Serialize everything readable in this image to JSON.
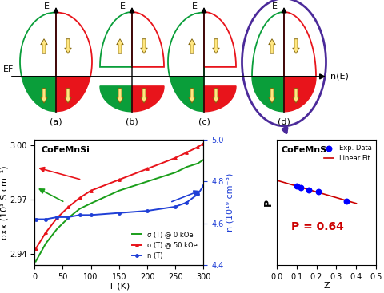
{
  "diagram": {
    "energy_label": "E",
    "dos_label": "n(E)",
    "fermi_label": "EF",
    "panels": [
      {
        "label": "(a)"
      },
      {
        "label": "(b)"
      },
      {
        "label": "(c)"
      },
      {
        "label": "(d)"
      }
    ]
  },
  "chart_data": [
    {
      "type": "line",
      "annotation": "CoFeMnSi",
      "x_label": "T (K)",
      "y_label": "σxx (10³ S cm⁻¹)",
      "y2_label": "n (10¹⁹ cm⁻³)",
      "xlim": [
        0,
        300
      ],
      "xticks": [
        0,
        50,
        100,
        150,
        200,
        250,
        300
      ],
      "ylim": [
        2.934,
        3.003
      ],
      "yticks": [
        2.94,
        2.97,
        {
          "value": 3.0,
          "label": "3.00"
        }
      ],
      "y2lim": [
        4.4,
        5.0
      ],
      "y2ticks": [
        4.4,
        4.6,
        4.8,
        5.0
      ],
      "legend": "lower right",
      "x": [
        2,
        20,
        40,
        60,
        80,
        100,
        150,
        200,
        250,
        270,
        290,
        300
      ],
      "series": [
        {
          "name": "σ (T) @ 0 kOe",
          "color": "#1a9e1a",
          "values": [
            2.936,
            2.946,
            2.954,
            2.96,
            2.965,
            2.968,
            2.975,
            2.98,
            2.985,
            2.988,
            2.99,
            2.992
          ]
        },
        {
          "name": "σ (T) @ 50 kOe",
          "color": "#e8141b",
          "marker": "triangle",
          "values": [
            2.943,
            2.952,
            2.96,
            2.966,
            2.971,
            2.975,
            2.981,
            2.987,
            2.993,
            2.996,
            2.999,
            3.001
          ]
        },
        {
          "name": "n (T)",
          "color": "#1f3fd6",
          "marker": "circle",
          "axis": "y2",
          "values": [
            4.62,
            4.62,
            4.63,
            4.63,
            4.64,
            4.64,
            4.65,
            4.66,
            4.68,
            4.7,
            4.74,
            4.78
          ]
        }
      ]
    },
    {
      "type": "scatter",
      "annotation": "CoFeMnSi",
      "fit_label": "P = 0.64",
      "x_label": "Z",
      "y_label": "P",
      "xlim": [
        0.0,
        0.5
      ],
      "xticks": [
        0.0,
        0.1,
        0.2,
        0.3,
        0.4,
        0.5
      ],
      "ylim": [
        0.2,
        0.85
      ],
      "tick_labels": "x",
      "legend": "upper right",
      "series": [
        {
          "name": "Exp. Data",
          "type": "scatter",
          "color": "#0000ff",
          "marker": "circle",
          "x": [
            0.1,
            0.12,
            0.16,
            0.21,
            0.35
          ],
          "values": [
            0.61,
            0.6,
            0.59,
            0.58,
            0.53
          ]
        },
        {
          "name": "Linear Fit",
          "type": "line",
          "color": "#cc0000",
          "x": [
            0.0,
            0.4
          ],
          "values": [
            0.64,
            0.52
          ]
        }
      ]
    }
  ]
}
